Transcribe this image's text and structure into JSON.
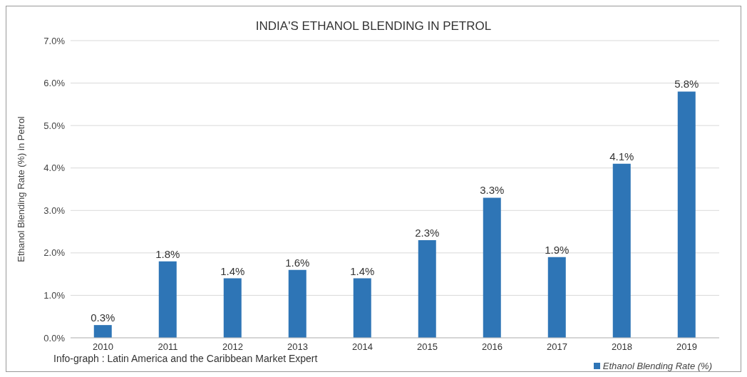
{
  "chart_data": {
    "type": "bar",
    "title": "INDIA'S ETHANOL BLENDING IN PETROL",
    "ylabel": "Ethanol Blending Rate (%) in Petrol",
    "categories": [
      "2010",
      "2011",
      "2012",
      "2013",
      "2014",
      "2015",
      "2016",
      "2017",
      "2018",
      "2019"
    ],
    "series": [
      {
        "name": "Ethanol Blending Rate (%)",
        "color": "#2e75b6",
        "values": [
          0.3,
          1.8,
          1.4,
          1.6,
          1.4,
          2.3,
          3.3,
          1.9,
          4.1,
          5.8
        ],
        "value_labels": [
          "0.3%",
          "1.8%",
          "1.4%",
          "1.6%",
          "1.4%",
          "2.3%",
          "3.3%",
          "1.9%",
          "4.1%",
          "5.8%"
        ]
      }
    ],
    "ylim": [
      0,
      7
    ],
    "yticks": [
      {
        "value": 0,
        "label": "0.0%"
      },
      {
        "value": 1,
        "label": "1.0%"
      },
      {
        "value": 2,
        "label": "2.0%"
      },
      {
        "value": 3,
        "label": "3.0%"
      },
      {
        "value": 4,
        "label": "4.0%"
      },
      {
        "value": 5,
        "label": "5.0%"
      },
      {
        "value": 6,
        "label": "6.0%"
      },
      {
        "value": 7,
        "label": "7.0%"
      }
    ],
    "grid": "y",
    "legend": "bottom right",
    "annotations": [
      "Info-graph : Latin America and the Caribbean Market Expert"
    ]
  }
}
